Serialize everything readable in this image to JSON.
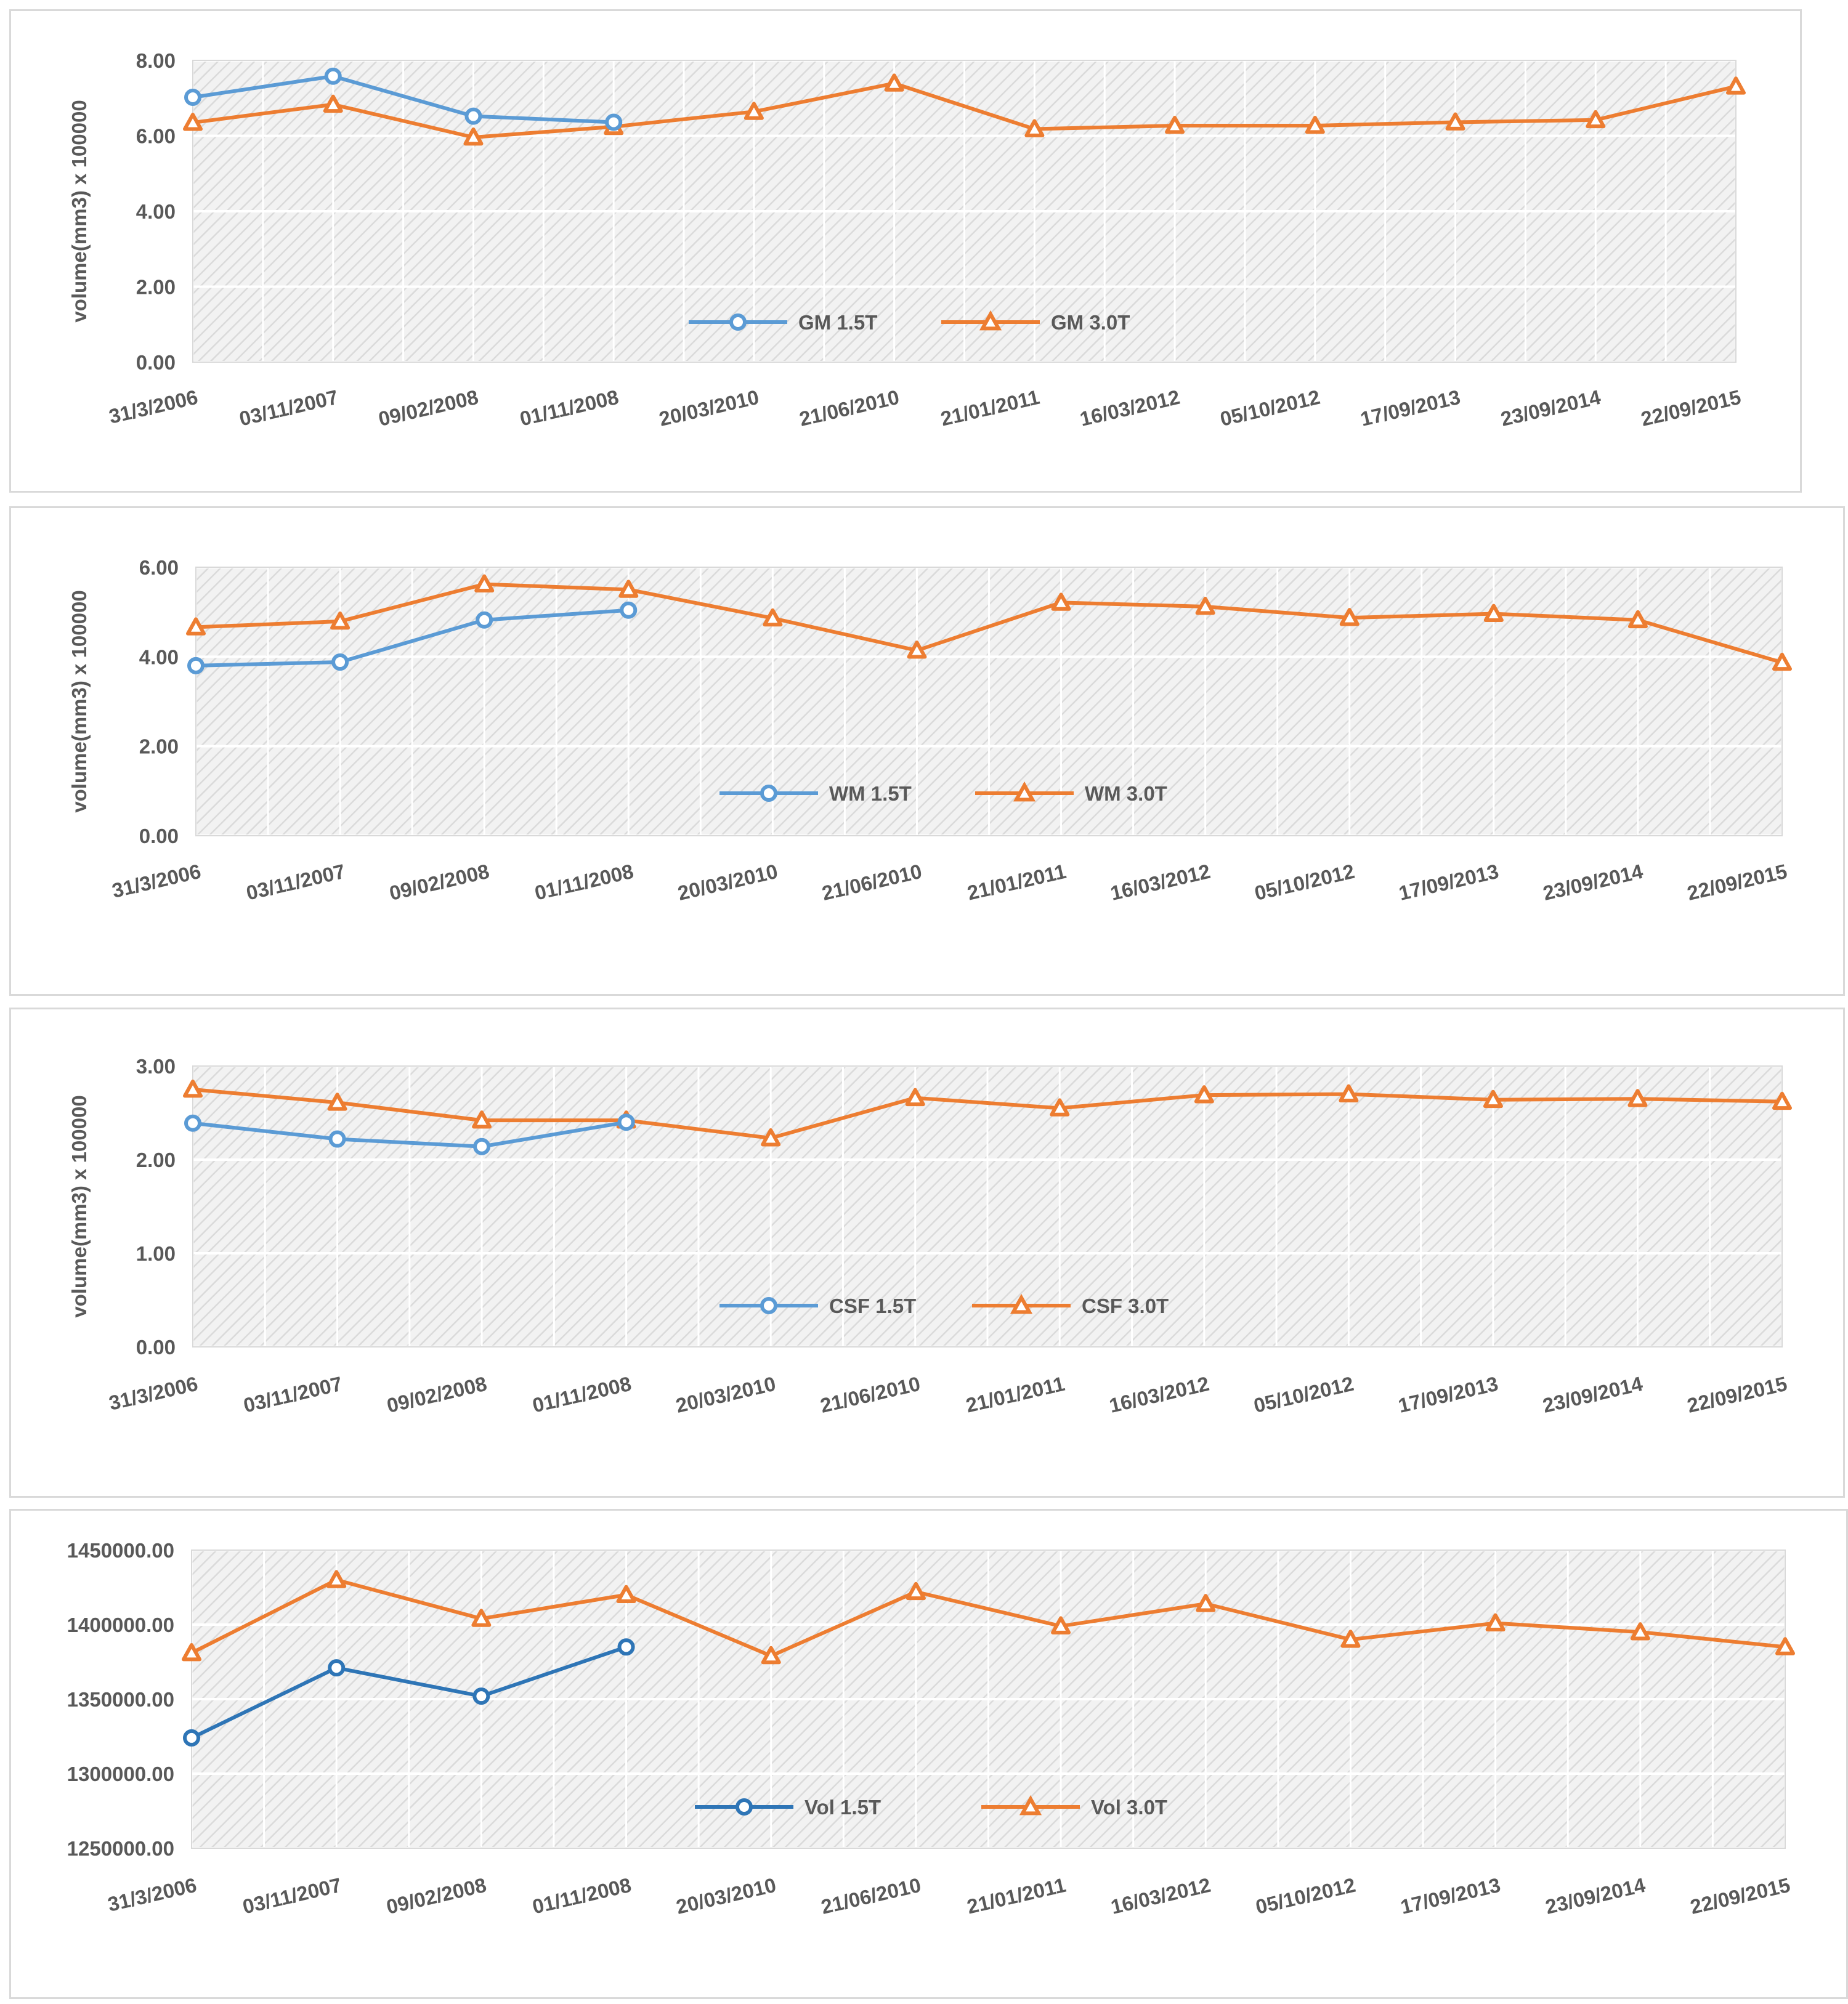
{
  "colors": {
    "series_15T": "#5b9bd5",
    "series_15T_dark": "#2e75b6",
    "series_30T": "#ed7d31",
    "grid": "#d9d9d9",
    "hatch": "#dadada",
    "text": "#595959"
  },
  "chart_data": [
    {
      "type": "line",
      "name": "gm-chart",
      "ylabel": "volume(mm3) x 100000",
      "ylim": [
        0,
        8
      ],
      "ystep": 2,
      "ytick_labels": [
        "0.00",
        "2.00",
        "4.00",
        "6.00",
        "8.00"
      ],
      "categories": [
        "31/3/2006",
        "03/11/2007",
        "09/02/2008",
        "01/11/2008",
        "20/03/2010",
        "21/06/2010",
        "21/01/2011",
        "16/03/2012",
        "05/10/2012",
        "17/09/2013",
        "23/09/2014",
        "22/09/2015"
      ],
      "legend_position": "center",
      "series": [
        {
          "name": "GM 1.5T",
          "marker": "circle",
          "color": "#5b9bd5",
          "values": [
            7.02,
            7.58,
            6.52,
            6.36,
            null,
            null,
            null,
            null,
            null,
            null,
            null,
            null
          ]
        },
        {
          "name": "GM 3.0T",
          "marker": "triangle",
          "color": "#ed7d31",
          "values": [
            6.35,
            6.83,
            5.96,
            6.24,
            6.64,
            7.39,
            6.18,
            6.27,
            6.27,
            6.36,
            6.42,
            7.31
          ]
        }
      ]
    },
    {
      "type": "line",
      "name": "wm-chart",
      "ylabel": "volume(mm3) x 100000",
      "ylim": [
        0,
        6
      ],
      "ystep": 2,
      "ytick_labels": [
        "0.00",
        "2.00",
        "4.00",
        "6.00"
      ],
      "categories": [
        "31/3/2006",
        "03/11/2007",
        "09/02/2008",
        "01/11/2008",
        "20/03/2010",
        "21/06/2010",
        "21/01/2011",
        "16/03/2012",
        "05/10/2012",
        "17/09/2013",
        "23/09/2014",
        "22/09/2015"
      ],
      "legend_position": "center",
      "series": [
        {
          "name": "WM 1.5T",
          "marker": "circle",
          "color": "#5b9bd5",
          "values": [
            3.8,
            3.88,
            4.82,
            5.04,
            null,
            null,
            null,
            null,
            null,
            null,
            null,
            null
          ]
        },
        {
          "name": "WM 3.0T",
          "marker": "triangle",
          "color": "#ed7d31",
          "values": [
            4.66,
            4.79,
            5.62,
            5.5,
            4.86,
            4.14,
            5.21,
            5.12,
            4.87,
            4.96,
            4.82,
            3.87
          ]
        }
      ]
    },
    {
      "type": "line",
      "name": "csf-chart",
      "ylabel": "volume(mm3) x 100000",
      "ylim": [
        0,
        3
      ],
      "ystep": 1,
      "ytick_labels": [
        "0.00",
        "1.00",
        "2.00",
        "3.00"
      ],
      "categories": [
        "31/3/2006",
        "03/11/2007",
        "09/02/2008",
        "01/11/2008",
        "20/03/2010",
        "21/06/2010",
        "21/01/2011",
        "16/03/2012",
        "05/10/2012",
        "17/09/2013",
        "23/09/2014",
        "22/09/2015"
      ],
      "legend_position": "center",
      "series": [
        {
          "name": "CSF 1.5T",
          "marker": "circle",
          "color": "#5b9bd5",
          "values": [
            2.39,
            2.22,
            2.14,
            2.4,
            null,
            null,
            null,
            null,
            null,
            null,
            null,
            null
          ]
        },
        {
          "name": "CSF 3.0T",
          "marker": "triangle",
          "color": "#ed7d31",
          "values": [
            2.75,
            2.61,
            2.42,
            2.42,
            2.23,
            2.66,
            2.55,
            2.69,
            2.7,
            2.64,
            2.65,
            2.62
          ]
        }
      ]
    },
    {
      "type": "line",
      "name": "vol-chart",
      "ylabel": "",
      "ylim": [
        1250000,
        1450000
      ],
      "ystep": 50000,
      "ytick_labels": [
        "1250000.00",
        "1300000.00",
        "1350000.00",
        "1400000.00",
        "1450000.00"
      ],
      "categories": [
        "31/3/2006",
        "03/11/2007",
        "09/02/2008",
        "01/11/2008",
        "20/03/2010",
        "21/06/2010",
        "21/01/2011",
        "16/03/2012",
        "05/10/2012",
        "17/09/2013",
        "23/09/2014",
        "22/09/2015"
      ],
      "legend_position": "center",
      "series": [
        {
          "name": "Vol 1.5T",
          "marker": "circle",
          "color": "#2e75b6",
          "values": [
            1324000,
            1371000,
            1352000,
            1385000,
            null,
            null,
            null,
            null,
            null,
            null,
            null,
            null
          ]
        },
        {
          "name": "Vol 3.0T",
          "marker": "triangle",
          "color": "#ed7d31",
          "values": [
            1381000,
            1430000,
            1404000,
            1420000,
            1379000,
            1422000,
            1399000,
            1414000,
            1390000,
            1401000,
            1395000,
            1385000
          ]
        }
      ]
    }
  ]
}
